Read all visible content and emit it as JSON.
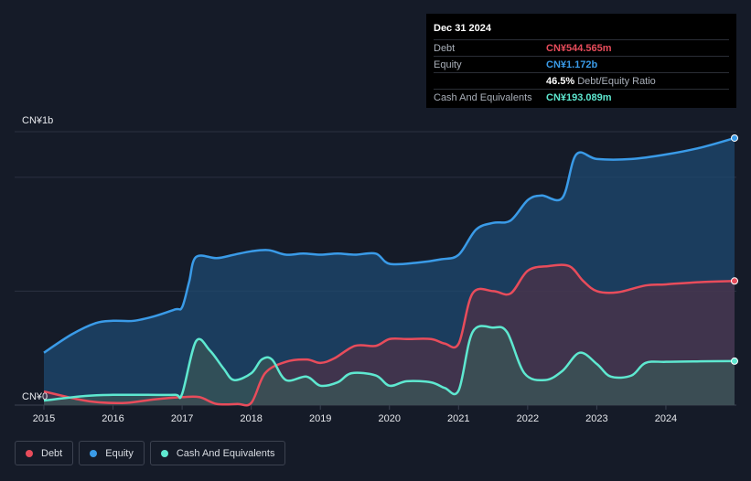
{
  "tooltip": {
    "date": "Dec 31 2024",
    "rows": [
      {
        "label": "Debt",
        "value": "CN¥544.565m",
        "color": "#e84c5b"
      },
      {
        "label": "Equity",
        "value": "CN¥1.172b",
        "color": "#3a9be8"
      },
      {
        "label": "",
        "value": "46.5%",
        "suffix": "Debt/Equity Ratio",
        "color": "#ffffff"
      },
      {
        "label": "Cash And Equivalents",
        "value": "CN¥193.089m",
        "color": "#5ee8d0"
      }
    ]
  },
  "legend": [
    {
      "label": "Debt",
      "color": "#e84c5b"
    },
    {
      "label": "Equity",
      "color": "#3a9be8"
    },
    {
      "label": "Cash And Equivalents",
      "color": "#5ee8d0"
    }
  ],
  "chart_data": {
    "type": "area",
    "y_tick_labels": [
      "CN¥0",
      "CN¥1b"
    ],
    "ylim": [
      0,
      1.2
    ],
    "y_gridlines": [
      0,
      0.5,
      1.0,
      1.2
    ],
    "xlim": [
      2015,
      2025
    ],
    "x_ticks": [
      2015,
      2016,
      2017,
      2018,
      2019,
      2020,
      2021,
      2022,
      2023,
      2024
    ],
    "series": [
      {
        "name": "Equity",
        "color": "#3a9be8",
        "fill": "#1e4a70",
        "points": [
          [
            2015,
            0.23
          ],
          [
            2015.4,
            0.31
          ],
          [
            2015.75,
            0.36
          ],
          [
            2016,
            0.37
          ],
          [
            2016.3,
            0.37
          ],
          [
            2016.6,
            0.39
          ],
          [
            2016.9,
            0.42
          ],
          [
            2017.0,
            0.43
          ],
          [
            2017.1,
            0.54
          ],
          [
            2017.2,
            0.65
          ],
          [
            2017.5,
            0.645
          ],
          [
            2017.75,
            0.66
          ],
          [
            2018.0,
            0.675
          ],
          [
            2018.25,
            0.68
          ],
          [
            2018.5,
            0.66
          ],
          [
            2018.75,
            0.665
          ],
          [
            2019.0,
            0.66
          ],
          [
            2019.25,
            0.665
          ],
          [
            2019.5,
            0.66
          ],
          [
            2019.8,
            0.665
          ],
          [
            2020.0,
            0.62
          ],
          [
            2020.4,
            0.625
          ],
          [
            2020.75,
            0.64
          ],
          [
            2021.0,
            0.66
          ],
          [
            2021.25,
            0.77
          ],
          [
            2021.5,
            0.8
          ],
          [
            2021.75,
            0.81
          ],
          [
            2022.0,
            0.9
          ],
          [
            2022.2,
            0.92
          ],
          [
            2022.5,
            0.91
          ],
          [
            2022.7,
            1.1
          ],
          [
            2023.0,
            1.08
          ],
          [
            2023.5,
            1.08
          ],
          [
            2024.0,
            1.1
          ],
          [
            2024.5,
            1.13
          ],
          [
            2024.99,
            1.172
          ]
        ]
      },
      {
        "name": "Debt",
        "color": "#e84c5b",
        "fill": "#4e3148",
        "points": [
          [
            2015,
            0.06
          ],
          [
            2015.5,
            0.025
          ],
          [
            2015.8,
            0.012
          ],
          [
            2016.2,
            0.01
          ],
          [
            2016.6,
            0.025
          ],
          [
            2017.0,
            0.035
          ],
          [
            2017.25,
            0.035
          ],
          [
            2017.5,
            0.005
          ],
          [
            2017.8,
            0.005
          ],
          [
            2018.0,
            0.01
          ],
          [
            2018.2,
            0.14
          ],
          [
            2018.5,
            0.19
          ],
          [
            2018.8,
            0.2
          ],
          [
            2019.0,
            0.185
          ],
          [
            2019.2,
            0.205
          ],
          [
            2019.5,
            0.26
          ],
          [
            2019.8,
            0.26
          ],
          [
            2020.0,
            0.29
          ],
          [
            2020.25,
            0.29
          ],
          [
            2020.6,
            0.29
          ],
          [
            2020.8,
            0.27
          ],
          [
            2021.0,
            0.27
          ],
          [
            2021.2,
            0.49
          ],
          [
            2021.5,
            0.5
          ],
          [
            2021.75,
            0.49
          ],
          [
            2022.0,
            0.59
          ],
          [
            2022.3,
            0.61
          ],
          [
            2022.6,
            0.61
          ],
          [
            2022.8,
            0.545
          ],
          [
            2023.0,
            0.5
          ],
          [
            2023.3,
            0.495
          ],
          [
            2023.7,
            0.525
          ],
          [
            2024.0,
            0.53
          ],
          [
            2024.5,
            0.54
          ],
          [
            2024.99,
            0.5446
          ]
        ]
      },
      {
        "name": "Cash And Equivalents",
        "color": "#5ee8d0",
        "fill": "#3a5557",
        "points": [
          [
            2015,
            0.02
          ],
          [
            2015.6,
            0.04
          ],
          [
            2016,
            0.045
          ],
          [
            2016.5,
            0.045
          ],
          [
            2016.9,
            0.045
          ],
          [
            2017.0,
            0.05
          ],
          [
            2017.2,
            0.28
          ],
          [
            2017.4,
            0.24
          ],
          [
            2017.6,
            0.16
          ],
          [
            2017.75,
            0.11
          ],
          [
            2018.0,
            0.14
          ],
          [
            2018.15,
            0.2
          ],
          [
            2018.3,
            0.2
          ],
          [
            2018.5,
            0.11
          ],
          [
            2018.8,
            0.125
          ],
          [
            2019.0,
            0.085
          ],
          [
            2019.25,
            0.1
          ],
          [
            2019.45,
            0.14
          ],
          [
            2019.8,
            0.13
          ],
          [
            2020.0,
            0.085
          ],
          [
            2020.25,
            0.105
          ],
          [
            2020.6,
            0.1
          ],
          [
            2020.8,
            0.075
          ],
          [
            2021.0,
            0.065
          ],
          [
            2021.2,
            0.32
          ],
          [
            2021.5,
            0.34
          ],
          [
            2021.7,
            0.32
          ],
          [
            2021.95,
            0.14
          ],
          [
            2022.25,
            0.11
          ],
          [
            2022.5,
            0.15
          ],
          [
            2022.75,
            0.23
          ],
          [
            2023.0,
            0.18
          ],
          [
            2023.2,
            0.125
          ],
          [
            2023.5,
            0.13
          ],
          [
            2023.7,
            0.185
          ],
          [
            2024.0,
            0.19
          ],
          [
            2024.5,
            0.192
          ],
          [
            2024.99,
            0.193
          ]
        ]
      }
    ]
  }
}
